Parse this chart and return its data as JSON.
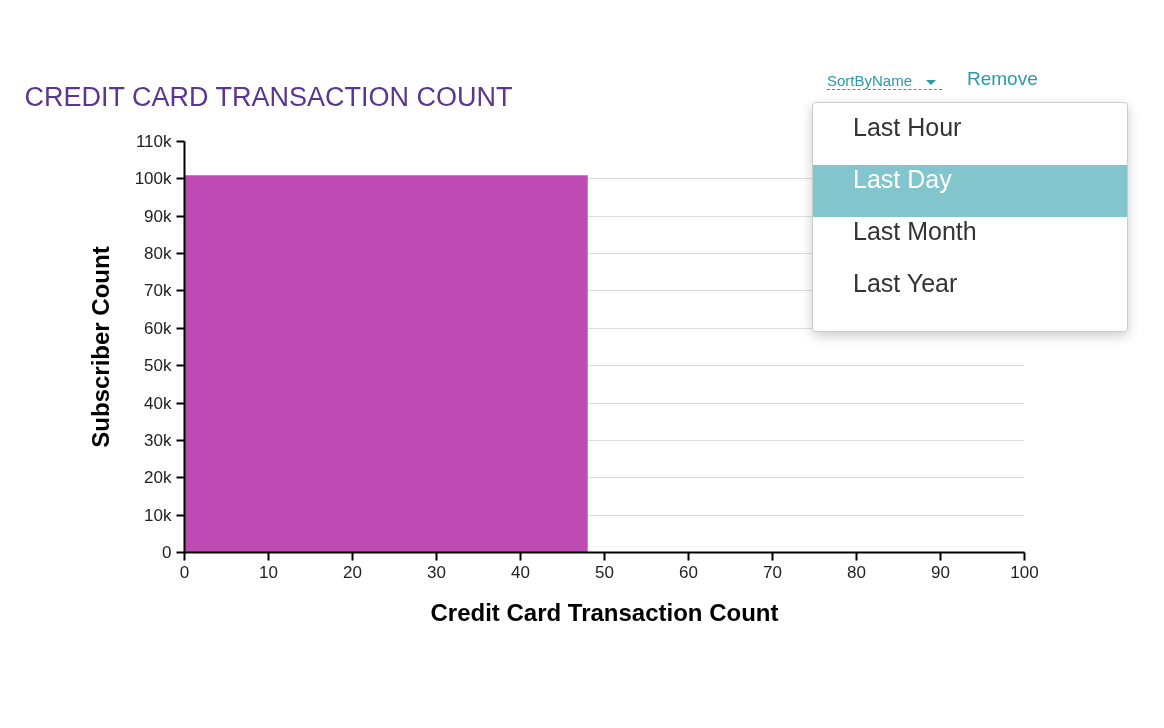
{
  "chart_data": {
    "type": "histogram",
    "title": "CREDIT CARD TRANSACTION COUNT",
    "xlabel": "Credit Card Transaction Count",
    "ylabel": "Subscriber Count",
    "bins": [
      0,
      48
    ],
    "values": [
      101000
    ],
    "color": "#be4bb4",
    "xlim": [
      0,
      100
    ],
    "xticks": [
      0,
      10,
      20,
      30,
      40,
      50,
      60,
      70,
      80,
      90,
      100
    ],
    "ylim": [
      0,
      110000
    ],
    "yticks": [
      {
        "value": 0,
        "label": "0"
      },
      {
        "value": 10000,
        "label": "10k"
      },
      {
        "value": 20000,
        "label": "20k"
      },
      {
        "value": 30000,
        "label": "30k"
      },
      {
        "value": 40000,
        "label": "40k"
      },
      {
        "value": 50000,
        "label": "50k"
      },
      {
        "value": 60000,
        "label": "60k"
      },
      {
        "value": 70000,
        "label": "70k"
      },
      {
        "value": 80000,
        "label": "80k"
      },
      {
        "value": 90000,
        "label": "90k"
      },
      {
        "value": 100000,
        "label": "100k"
      },
      {
        "value": 110000,
        "label": "110k"
      }
    ],
    "grid": "y",
    "annotations": [
      "SortByName",
      "Remove",
      "Last Hour",
      "Last Day",
      "Last Month",
      "Last Year"
    ]
  }
}
